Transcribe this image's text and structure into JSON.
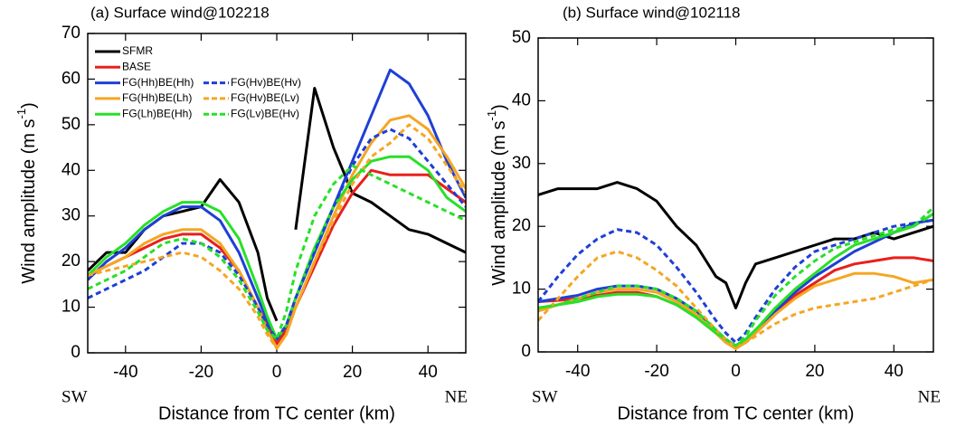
{
  "chart_data": [
    {
      "type": "line",
      "title": "(a) Surface wind@102218",
      "xlabel": "Distance from TC center (km)",
      "ylabel": "Wind amplitude (m s",
      "ylabel_sup": "-1",
      "ylabel_end": ")",
      "annotations": [
        "SW",
        "NE"
      ],
      "legend": true,
      "xlim": [
        -50,
        50
      ],
      "xticks": [
        -40,
        -20,
        0,
        20,
        40
      ],
      "ylim": [
        0,
        70
      ],
      "yticks": [
        0,
        10,
        20,
        30,
        40,
        50,
        60,
        70
      ],
      "x": [
        -50,
        -45,
        -40,
        -35,
        -30,
        -25,
        -20,
        -15,
        -10,
        -5,
        -2.5,
        0,
        2.5,
        5,
        10,
        15,
        20,
        25,
        30,
        35,
        40,
        45,
        50
      ],
      "series": [
        {
          "name": "SFMR",
          "color": "#000000",
          "dash": false,
          "values": [
            18,
            22,
            22,
            27,
            30,
            31,
            32,
            38,
            33,
            22,
            12,
            7,
            null,
            27,
            58,
            45,
            35,
            33,
            30,
            27,
            26,
            24,
            22
          ]
        },
        {
          "name": "BASE",
          "color": "#e8201c",
          "dash": false,
          "values": [
            17,
            19,
            21,
            23,
            25,
            26,
            26,
            23,
            18,
            10,
            6,
            2,
            5,
            10,
            19,
            28,
            35,
            40,
            39,
            39,
            39,
            36,
            33
          ]
        },
        {
          "name": "FG(Hh)BE(Hh)",
          "color": "#1f3fd6",
          "dash": false,
          "values": [
            16,
            20,
            23,
            27,
            30,
            32,
            32,
            29,
            22,
            12,
            7,
            3,
            6,
            12,
            22,
            32,
            42,
            52,
            62,
            59,
            52,
            42,
            34
          ]
        },
        {
          "name": "FG(Hh)BE(Lh)",
          "color": "#f5a623",
          "dash": false,
          "values": [
            17,
            19,
            21,
            24,
            26,
            27,
            27,
            24,
            18,
            10,
            5,
            1,
            4,
            10,
            20,
            30,
            39,
            46,
            51,
            52,
            49,
            43,
            36
          ]
        },
        {
          "name": "FG(Lh)BE(Hh)",
          "color": "#28e028",
          "dash": false,
          "values": [
            17,
            21,
            24,
            28,
            31,
            33,
            33,
            31,
            25,
            14,
            8,
            3,
            6,
            12,
            23,
            32,
            38,
            42,
            43,
            43,
            40,
            34,
            31
          ]
        },
        {
          "name": "FG(Hv)BE(Hv)",
          "color": "#1f3fd6",
          "dash": true,
          "values": [
            12,
            14,
            16,
            18,
            21,
            24,
            24,
            22,
            17,
            10,
            6,
            3,
            6,
            12,
            22,
            32,
            41,
            47,
            49,
            47,
            42,
            37,
            32
          ]
        },
        {
          "name": "FG(Hv)BE(Lv)",
          "color": "#f5a623",
          "dash": true,
          "values": [
            17,
            18,
            19,
            20,
            21,
            22,
            21,
            18,
            14,
            8,
            4,
            1,
            4,
            10,
            20,
            29,
            37,
            43,
            46,
            50,
            47,
            41,
            35
          ]
        },
        {
          "name": "FG(Lv)BE(Hv)",
          "color": "#28e028",
          "dash": true,
          "values": [
            14,
            16,
            18,
            21,
            24,
            25,
            24,
            21,
            16,
            9,
            5,
            3,
            9,
            18,
            30,
            37,
            41,
            39,
            37,
            35,
            33,
            31,
            29
          ]
        }
      ]
    },
    {
      "type": "line",
      "title": "(b) Surface wind@102118",
      "xlabel": "Distance from TC center (km)",
      "ylabel": "Wind amplitude (m s",
      "ylabel_sup": "-1",
      "ylabel_end": ")",
      "annotations": [
        "SW",
        "NE"
      ],
      "legend": false,
      "xlim": [
        -50,
        50
      ],
      "xticks": [
        -40,
        -20,
        0,
        20,
        40
      ],
      "ylim": [
        0,
        50
      ],
      "yticks": [
        0,
        10,
        20,
        30,
        40,
        50
      ],
      "x": [
        -50,
        -45,
        -40,
        -35,
        -30,
        -25,
        -20,
        -15,
        -10,
        -5,
        -2.5,
        0,
        2.5,
        5,
        10,
        15,
        20,
        25,
        30,
        35,
        40,
        45,
        50
      ],
      "series": [
        {
          "color": "#000000",
          "dash": false,
          "values": [
            25,
            26,
            26,
            26,
            27,
            26,
            24,
            20,
            17,
            12,
            11,
            7,
            11,
            14,
            15,
            16,
            17,
            18,
            18,
            19,
            18,
            19,
            20
          ]
        },
        {
          "color": "#e8201c",
          "dash": false,
          "values": [
            8,
            8.2,
            8.5,
            9,
            9.5,
            9.5,
            8.8,
            7.5,
            5.5,
            3,
            1.5,
            0.7,
            1.5,
            3,
            6,
            9,
            11,
            13,
            14,
            14.5,
            15,
            15,
            14.5
          ]
        },
        {
          "color": "#1f3fd6",
          "dash": false,
          "values": [
            8,
            8.5,
            9,
            10,
            10.5,
            10.5,
            10,
            8.5,
            6.5,
            3.5,
            2,
            1,
            2,
            3.5,
            6.5,
            9.5,
            12,
            14,
            16,
            17.5,
            19,
            20.5,
            21
          ]
        },
        {
          "color": "#f5a623",
          "dash": false,
          "values": [
            6.5,
            7.5,
            8.5,
            9.5,
            10,
            10,
            9.5,
            8,
            6,
            3,
            1.5,
            0.5,
            1.5,
            3,
            6,
            8.5,
            10.5,
            11.5,
            12.5,
            12.5,
            12,
            11,
            11.5
          ]
        },
        {
          "color": "#28e028",
          "dash": false,
          "values": [
            7,
            7.5,
            8,
            8.8,
            9.2,
            9.2,
            8.8,
            7.5,
            5.5,
            3,
            2,
            1,
            2,
            3.5,
            7,
            10,
            12.5,
            15,
            17,
            18,
            19,
            20,
            22
          ]
        },
        {
          "color": "#1f3fd6",
          "dash": true,
          "values": [
            8,
            12,
            15.5,
            18,
            19.5,
            19,
            17,
            13.5,
            9.5,
            5,
            3,
            1.5,
            3,
            5.5,
            10,
            13.5,
            16,
            17,
            18,
            19,
            20,
            20.5,
            21
          ]
        },
        {
          "color": "#f5a623",
          "dash": true,
          "values": [
            5,
            8.5,
            12,
            15,
            16,
            15,
            13,
            10.5,
            7,
            3.5,
            2,
            0.7,
            1.5,
            2.5,
            4.5,
            6,
            7,
            7.5,
            8,
            8.5,
            9.5,
            10.5,
            11.5
          ]
        },
        {
          "color": "#28e028",
          "dash": true,
          "values": [
            7,
            7.5,
            8.5,
            9.5,
            10.5,
            10.5,
            10,
            8.5,
            6.5,
            3.5,
            2,
            1,
            2.5,
            5,
            9,
            12,
            14.5,
            16.5,
            17.5,
            18.5,
            19.5,
            20,
            23
          ]
        }
      ]
    }
  ]
}
